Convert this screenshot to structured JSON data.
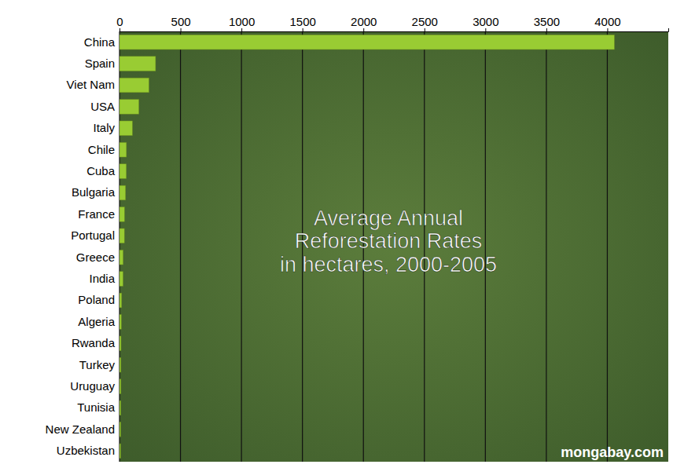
{
  "chart_data": {
    "type": "bar",
    "orientation": "horizontal",
    "title": "Average Annual\nReforestation Rates\nin hectares, 2000-2005",
    "annotations": [
      "mongabay.com"
    ],
    "categories": [
      "China",
      "Spain",
      "Viet Nam",
      "USA",
      "Italy",
      "Chile",
      "Cuba",
      "Bulgaria",
      "France",
      "Portugal",
      "Greece",
      "India",
      "Poland",
      "Algeria",
      "Rwanda",
      "Turkey",
      "Uruguay",
      "Tunisia",
      "New Zealand",
      "Uzbekistan"
    ],
    "values": [
      4058,
      296,
      241,
      159,
      106,
      57,
      56,
      50,
      41,
      40,
      30,
      29,
      18,
      15,
      13,
      12,
      12,
      11,
      10,
      9
    ],
    "color": "#99cc33",
    "xlim": [
      0,
      4500
    ],
    "xticks": [
      0,
      500,
      1000,
      1500,
      2000,
      2500,
      3000,
      3500,
      4000
    ],
    "grid": true
  }
}
